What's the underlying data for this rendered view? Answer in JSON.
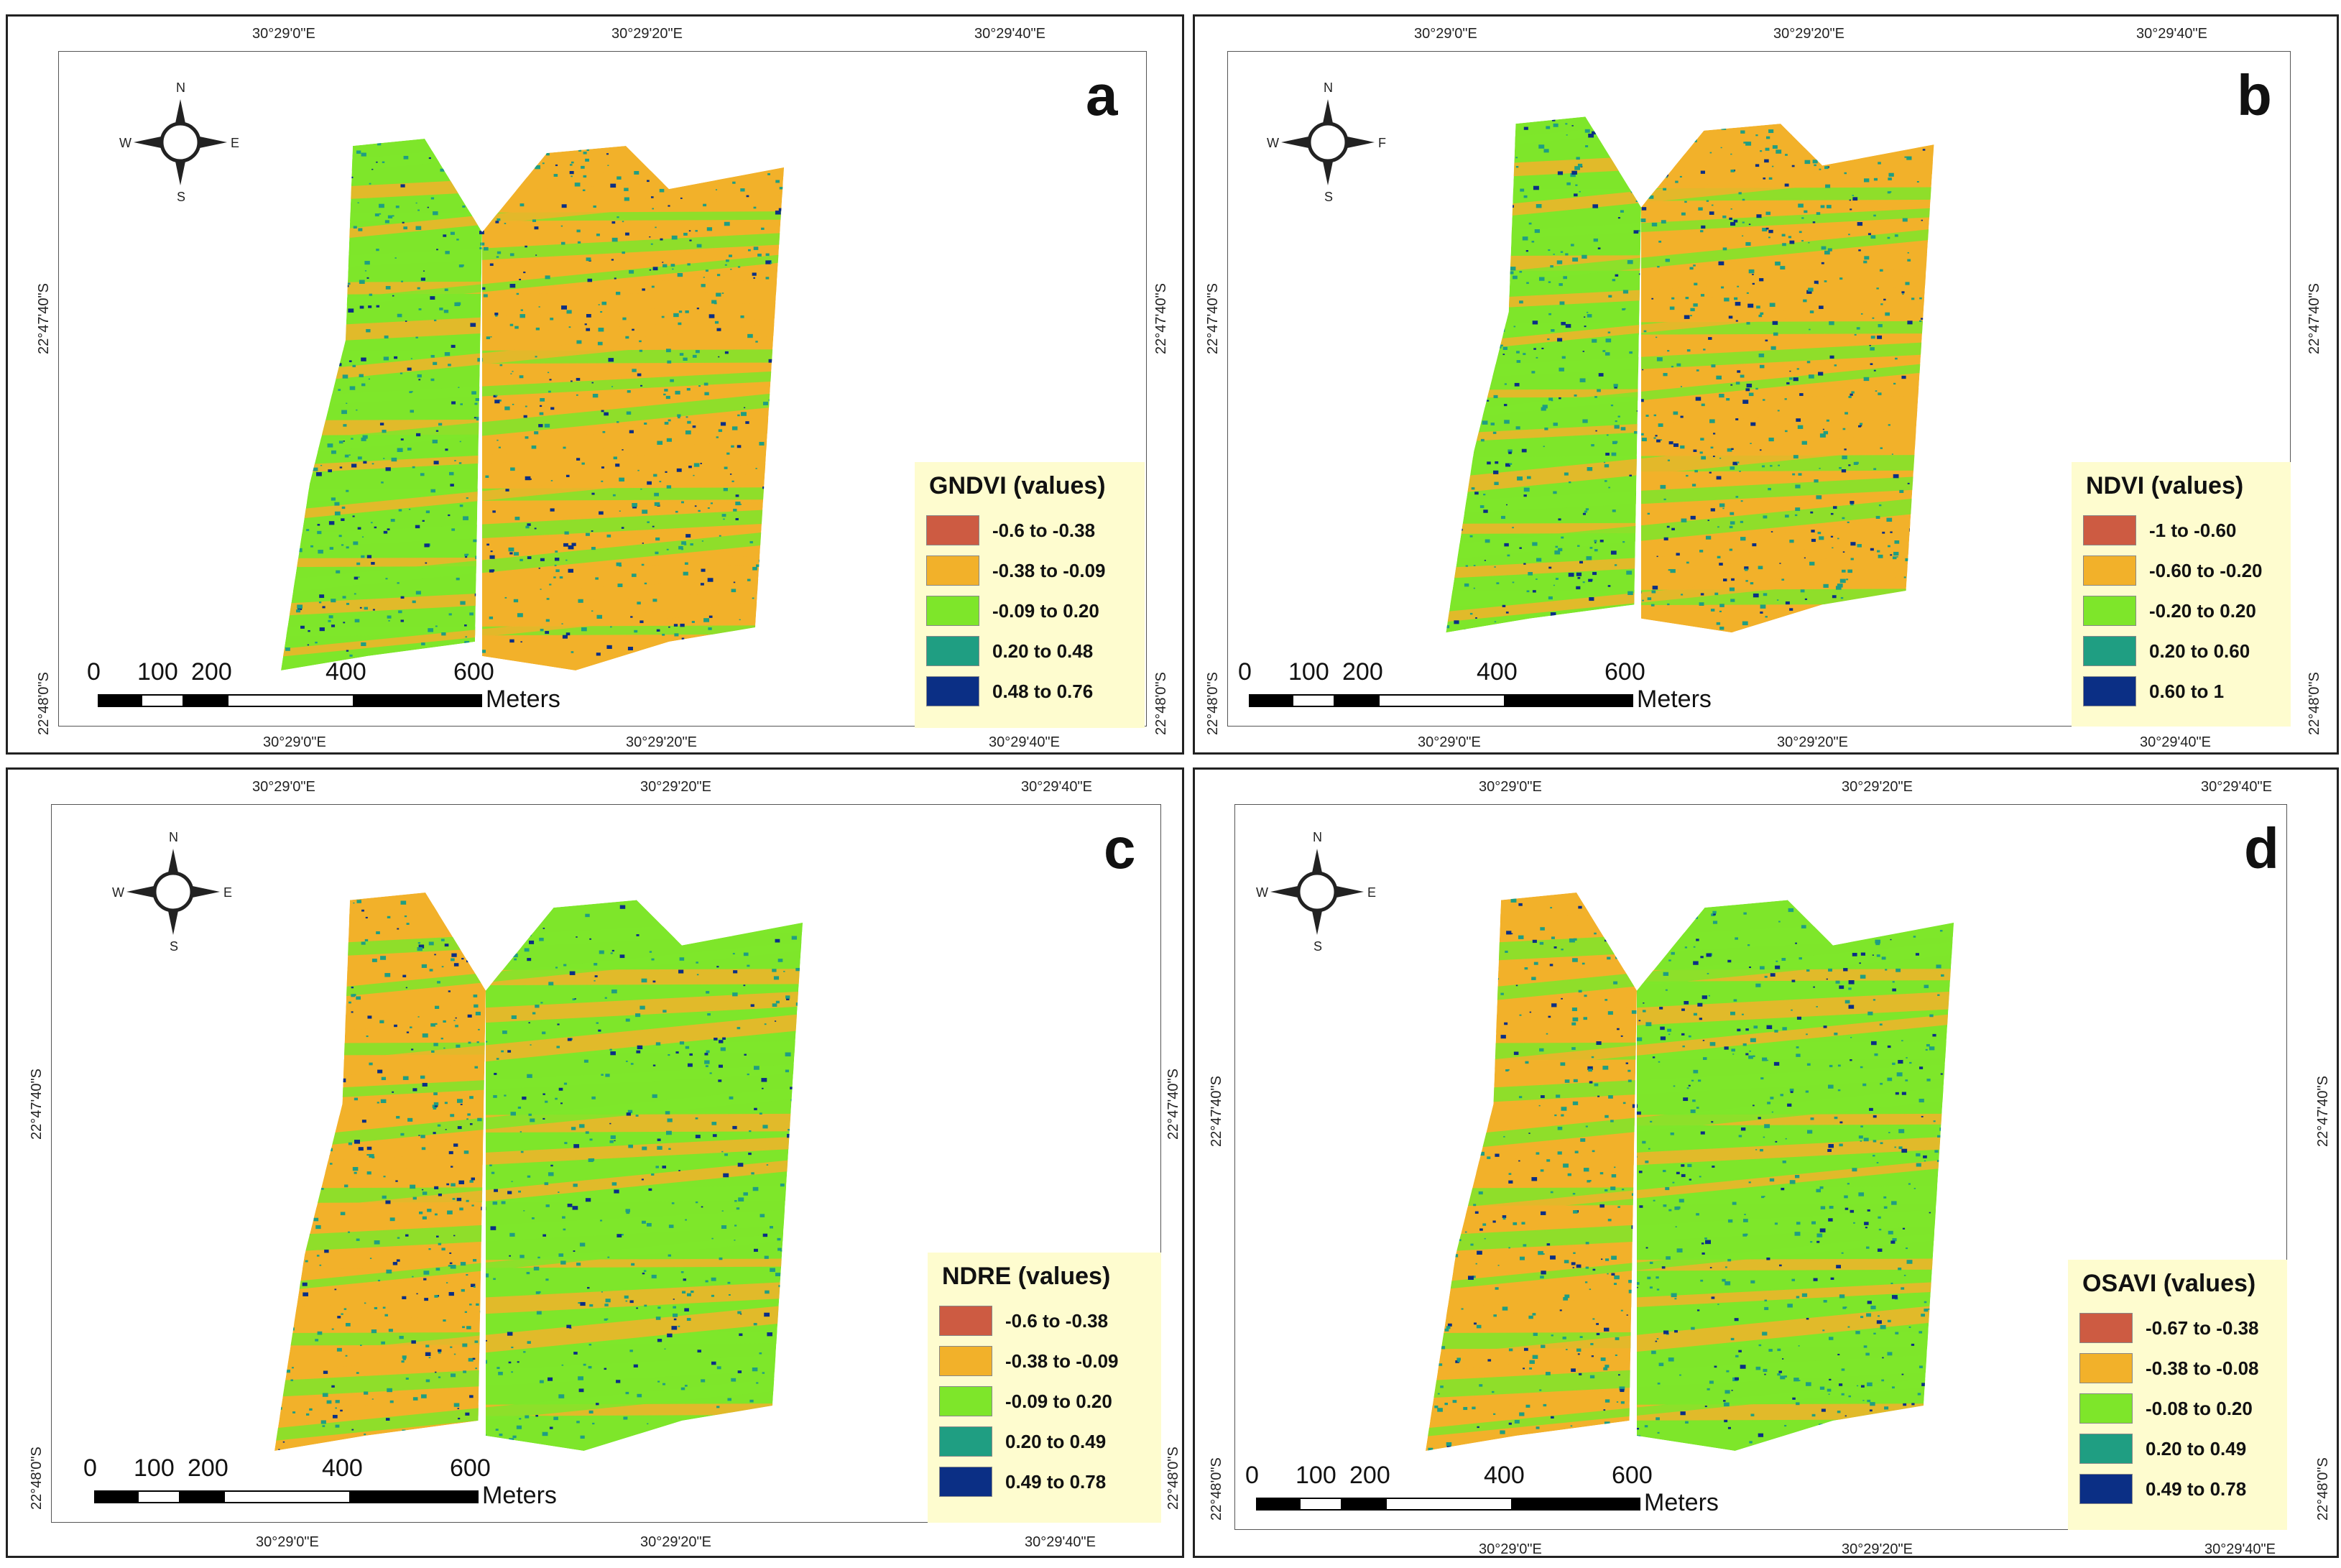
{
  "colors": {
    "class1": "#cd5b42",
    "class2": "#f2b12a",
    "class3": "#7ee62a",
    "class4": "#1f9e82",
    "class5": "#0b2f85",
    "legend_bg": "#fefccf"
  },
  "compass_labels": {
    "n": "N",
    "s": "S",
    "w": "W",
    "e": "E"
  },
  "scale": {
    "ticks": [
      "0",
      "100",
      "200",
      "400",
      "600"
    ],
    "unit": "Meters"
  },
  "panels": [
    {
      "letter": "a",
      "top_coords": [
        "30°29'0\"E",
        "30°29'20\"E",
        "30°29'40\"E"
      ],
      "bottom_coords": [
        "30°29'0\"E",
        "30°29'20\"E",
        "30°29'40\"E"
      ],
      "left_coords": [
        "22°47'40\"S",
        "22°48'0\"S"
      ],
      "right_coords": [
        "22°47'40\"S",
        "22°48'0\"S"
      ],
      "compass_e": "E",
      "legend": {
        "title": "GNDVI (values)",
        "items": [
          "-0.6 to -0.38",
          "-0.38 to -0.09",
          "-0.09 to 0.20",
          "0.20 to 0.48",
          "0.48 to 0.76"
        ]
      }
    },
    {
      "letter": "b",
      "top_coords": [
        "30°29'0\"E",
        "30°29'20\"E",
        "30°29'40\"E"
      ],
      "bottom_coords": [
        "30°29'0\"E",
        "30°29'20\"E",
        "30°29'40\"E"
      ],
      "left_coords": [
        "22°47'40\"S",
        "22°48'0\"S"
      ],
      "right_coords": [
        "22°47'40\"S",
        "22°48'0\"S"
      ],
      "compass_e": "F",
      "legend": {
        "title": "NDVI (values)",
        "items": [
          "-1 to -0.60",
          "-0.60 to -0.20",
          "-0.20 to 0.20",
          "0.20 to 0.60",
          "0.60 to 1"
        ]
      }
    },
    {
      "letter": "c",
      "top_coords": [
        "30°29'0\"E",
        "30°29'20\"E",
        "30°29'40\"E"
      ],
      "bottom_coords": [
        "30°29'0\"E",
        "30°29'20\"E",
        "30°29'40\"E"
      ],
      "left_coords": [
        "22°47'40\"S",
        "22°48'0\"S"
      ],
      "right_coords": [
        "22°47'40\"S",
        "22°48'0\"S"
      ],
      "compass_e": "E",
      "legend": {
        "title": "NDRE (values)",
        "items": [
          "-0.6 to -0.38",
          "-0.38  to -0.09",
          "-0.09 to  0.20",
          "0.20 to 0.49",
          "0.49 to 0.78"
        ]
      }
    },
    {
      "letter": "d",
      "top_coords": [
        "30°29'0\"E",
        "30°29'20\"E",
        "30°29'40\"E"
      ],
      "bottom_coords": [
        "30°29'0\"E",
        "30°29'20\"E",
        "30°29'40\"E"
      ],
      "left_coords": [
        "22°47'40\"S",
        "22°48'0\"S"
      ],
      "right_coords": [
        "22°47'40\"S",
        "22°48'0\"S"
      ],
      "compass_e": "E",
      "legend": {
        "title": "OSAVI (values)",
        "items": [
          "-0.67 to -0.38",
          "-0.38 to -0.08",
          "-0.08 to 0.20",
          "0.20 to 0.49",
          "0.49 to 0.78"
        ]
      }
    }
  ]
}
